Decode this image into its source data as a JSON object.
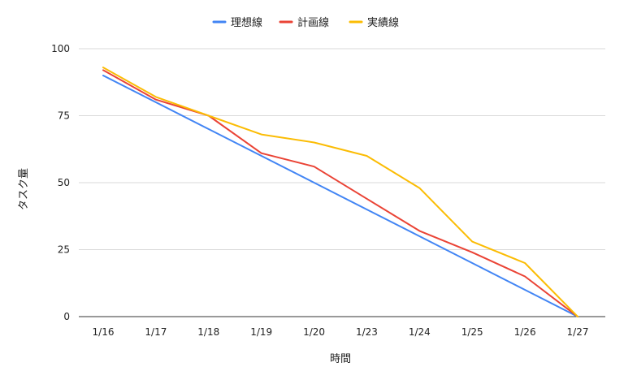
{
  "chart_data": {
    "type": "line",
    "title": "",
    "xlabel": "時間",
    "ylabel": "タスク量",
    "categories": [
      "1/16",
      "1/17",
      "1/18",
      "1/19",
      "1/20",
      "1/23",
      "1/24",
      "1/25",
      "1/26",
      "1/27"
    ],
    "ylim": [
      0,
      100
    ],
    "yticks": [
      0,
      25,
      50,
      75,
      100
    ],
    "grid": true,
    "legend_position": "top",
    "series": [
      {
        "name": "理想線",
        "color": "#4285F4",
        "values": [
          90,
          80,
          70,
          60,
          50,
          40,
          30,
          20,
          10,
          0
        ]
      },
      {
        "name": "計画線",
        "color": "#EA4335",
        "values": [
          92,
          81,
          75,
          61,
          56,
          44,
          32,
          24,
          15,
          0
        ]
      },
      {
        "name": "実績線",
        "color": "#FBBC04",
        "values": [
          93,
          82,
          75,
          68,
          65,
          60,
          48,
          28,
          20,
          0
        ]
      }
    ]
  }
}
